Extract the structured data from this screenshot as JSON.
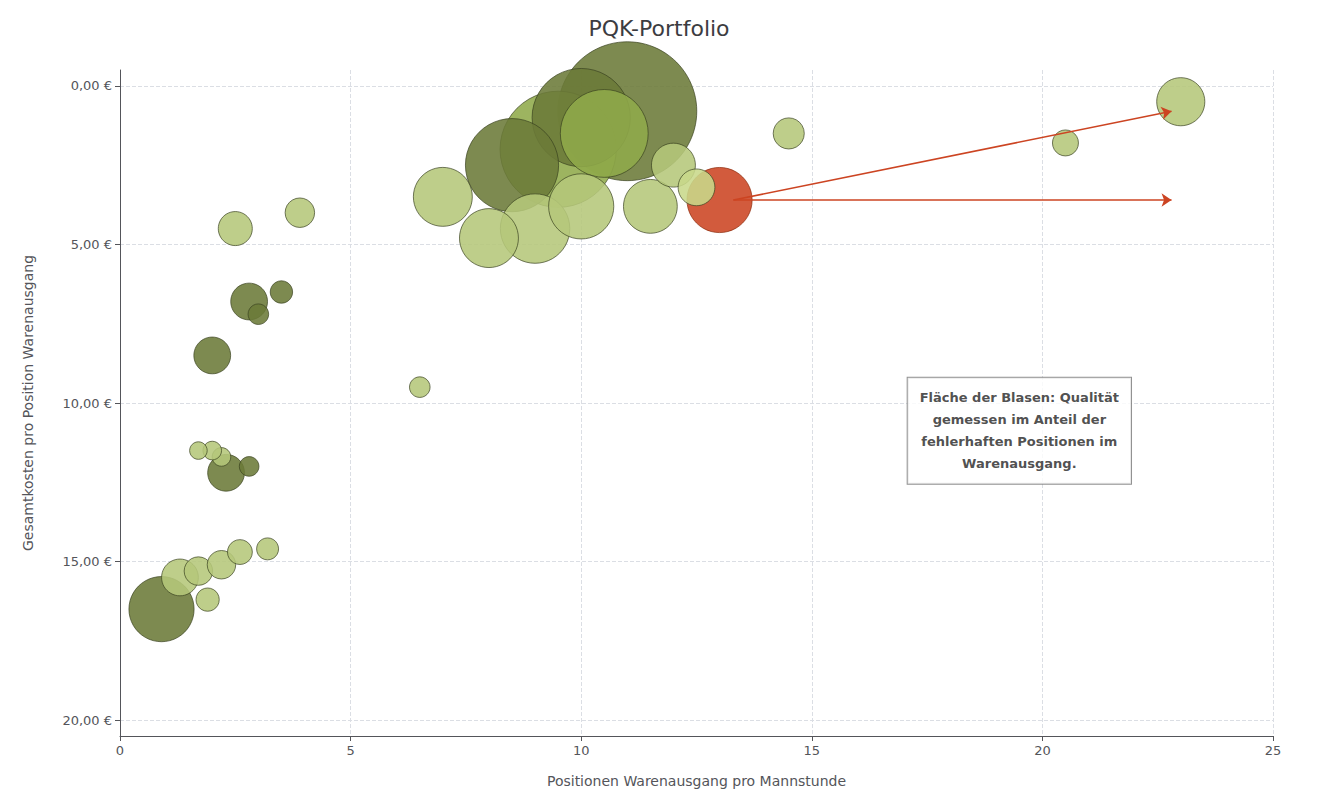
{
  "chart_data": {
    "type": "scatter",
    "title": "PQK-Portfolio",
    "xlabel": "Positionen Warenausgang pro Mannstunde",
    "ylabel": "Gesamtkosten pro Position Warenausgang",
    "xlim": [
      0,
      25
    ],
    "ylim": [
      20.5,
      -0.5
    ],
    "xticks": [
      0,
      5,
      10,
      15,
      20,
      25
    ],
    "yticks": [
      {
        "value": 0,
        "label": "0,00 €"
      },
      {
        "value": 5,
        "label": "5,00 €"
      },
      {
        "value": 10,
        "label": "10,00 €"
      },
      {
        "value": 15,
        "label": "15,00 €"
      },
      {
        "value": 20,
        "label": "20,00 €"
      }
    ],
    "grid": true,
    "bubbles": [
      {
        "x": 11.0,
        "y": 0.8,
        "size": 10000,
        "color": "#6b7a38",
        "edgecolor": "#3a4220"
      },
      {
        "x": 9.5,
        "y": 2.0,
        "size": 7000,
        "color": "#8faa4a",
        "edgecolor": "#3a4220"
      },
      {
        "x": 10.0,
        "y": 1.0,
        "size": 5000,
        "color": "#6b7a38",
        "edgecolor": "#3a4220"
      },
      {
        "x": 8.5,
        "y": 2.5,
        "size": 4500,
        "color": "#6b7a38",
        "edgecolor": "#3a4220"
      },
      {
        "x": 10.5,
        "y": 1.5,
        "size": 4000,
        "color": "#8faa4a",
        "edgecolor": "#3a4220"
      },
      {
        "x": 9.0,
        "y": 4.5,
        "size": 2500,
        "color": "#b5c77a",
        "edgecolor": "#3a4220"
      },
      {
        "x": 0.9,
        "y": 16.5,
        "size": 2200,
        "color": "#6b7a38",
        "edgecolor": "#3a4220"
      },
      {
        "x": 10.0,
        "y": 3.8,
        "size": 2200,
        "color": "#b5c77a",
        "edgecolor": "#3a4220"
      },
      {
        "x": 13.0,
        "y": 3.6,
        "size": 2200,
        "color": "#cc4422",
        "edgecolor": "#8b2a0a"
      },
      {
        "x": 7.0,
        "y": 3.5,
        "size": 1800,
        "color": "#b5c77a",
        "edgecolor": "#3a4220"
      },
      {
        "x": 8.0,
        "y": 4.8,
        "size": 1800,
        "color": "#b5c77a",
        "edgecolor": "#3a4220"
      },
      {
        "x": 11.5,
        "y": 3.8,
        "size": 1500,
        "color": "#b5c77a",
        "edgecolor": "#3a4220"
      },
      {
        "x": 23.0,
        "y": 0.5,
        "size": 1200,
        "color": "#b5c77a",
        "edgecolor": "#3a4220"
      },
      {
        "x": 12.0,
        "y": 2.5,
        "size": 1000,
        "color": "#b5c77a",
        "edgecolor": "#3a4220"
      },
      {
        "x": 1.3,
        "y": 15.5,
        "size": 700,
        "color": "#b5c77a",
        "edgecolor": "#3a4220"
      },
      {
        "x": 2.0,
        "y": 8.5,
        "size": 700,
        "color": "#6b7a38",
        "edgecolor": "#3a4220"
      },
      {
        "x": 2.8,
        "y": 6.8,
        "size": 700,
        "color": "#6b7a38",
        "edgecolor": "#3a4220"
      },
      {
        "x": 2.3,
        "y": 12.2,
        "size": 700,
        "color": "#6b7a38",
        "edgecolor": "#3a4220"
      },
      {
        "x": 12.5,
        "y": 3.2,
        "size": 700,
        "color": "#c8d88a",
        "edgecolor": "#3a4220"
      },
      {
        "x": 2.5,
        "y": 4.5,
        "size": 600,
        "color": "#b5c77a",
        "edgecolor": "#3a4220"
      },
      {
        "x": 14.5,
        "y": 1.5,
        "size": 500,
        "color": "#b5c77a",
        "edgecolor": "#3a4220"
      },
      {
        "x": 3.9,
        "y": 4.0,
        "size": 450,
        "color": "#b5c77a",
        "edgecolor": "#3a4220"
      },
      {
        "x": 1.7,
        "y": 15.3,
        "size": 420,
        "color": "#b5c77a",
        "edgecolor": "#3a4220"
      },
      {
        "x": 2.2,
        "y": 15.1,
        "size": 420,
        "color": "#b5c77a",
        "edgecolor": "#3a4220"
      },
      {
        "x": 20.5,
        "y": 1.8,
        "size": 350,
        "color": "#b5c77a",
        "edgecolor": "#3a4220"
      },
      {
        "x": 2.6,
        "y": 14.7,
        "size": 320,
        "color": "#b5c77a",
        "edgecolor": "#3a4220"
      },
      {
        "x": 1.9,
        "y": 16.2,
        "size": 280,
        "color": "#b5c77a",
        "edgecolor": "#3a4220"
      },
      {
        "x": 3.5,
        "y": 6.5,
        "size": 260,
        "color": "#6b7a38",
        "edgecolor": "#3a4220"
      },
      {
        "x": 3.2,
        "y": 14.6,
        "size": 250,
        "color": "#b5c77a",
        "edgecolor": "#3a4220"
      },
      {
        "x": 3.0,
        "y": 7.2,
        "size": 220,
        "color": "#6b7a38",
        "edgecolor": "#3a4220"
      },
      {
        "x": 6.5,
        "y": 9.5,
        "size": 220,
        "color": "#b5c77a",
        "edgecolor": "#3a4220"
      },
      {
        "x": 2.8,
        "y": 12.0,
        "size": 200,
        "color": "#6b7a38",
        "edgecolor": "#3a4220"
      },
      {
        "x": 2.2,
        "y": 11.7,
        "size": 180,
        "color": "#b5c77a",
        "edgecolor": "#3a4220"
      },
      {
        "x": 2.0,
        "y": 11.5,
        "size": 180,
        "color": "#b5c77a",
        "edgecolor": "#3a4220"
      },
      {
        "x": 1.7,
        "y": 11.5,
        "size": 160,
        "color": "#b5c77a",
        "edgecolor": "#3a4220"
      }
    ],
    "arrows": [
      {
        "start": [
          13.3,
          3.6
        ],
        "end": [
          22.8,
          0.8
        ],
        "color": "#cc4422"
      },
      {
        "start": [
          13.3,
          3.6
        ],
        "end": [
          22.8,
          3.6
        ],
        "color": "#cc4422"
      }
    ],
    "annotations": [
      {
        "text": "Fläche der Blasen: Qualität\ngemessen im Anteil der\nfehlerhaften Positionen im\nWarenausgang.",
        "x": 19.5,
        "y": 9.2
      }
    ]
  }
}
